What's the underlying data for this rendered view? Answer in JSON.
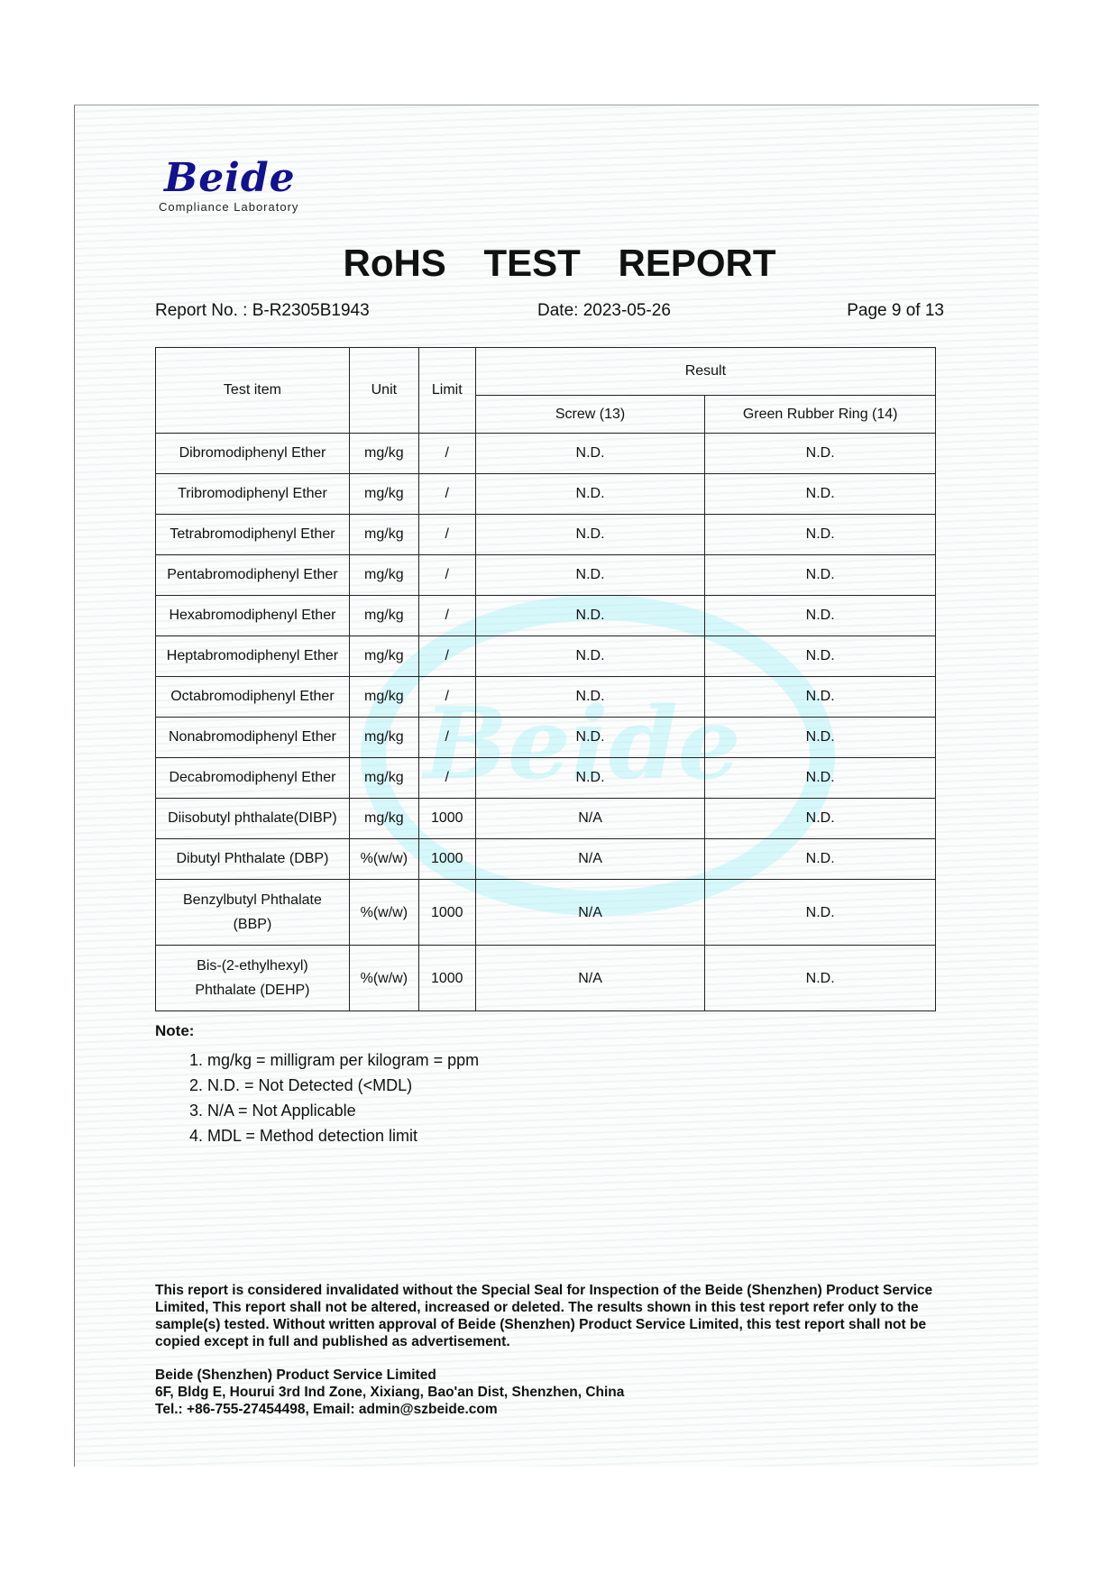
{
  "logo": {
    "word": "Beide",
    "subtitle": "Compliance Laboratory",
    "color": "#12128a"
  },
  "title": "RoHS TEST REPORT",
  "meta": {
    "report_no": "Report No. : B-R2305B1943",
    "date": "Date: 2023-05-26",
    "page": "Page 9 of 13"
  },
  "table": {
    "headers": {
      "test_item": "Test item",
      "unit": "Unit",
      "limit": "Limit",
      "result": "Result",
      "sample1": "Screw (13)",
      "sample2": "Green Rubber Ring (14)"
    },
    "rows": [
      {
        "item": "Dibromodiphenyl Ether",
        "unit": "mg/kg",
        "limit": "/",
        "r1": "N.D.",
        "r2": "N.D."
      },
      {
        "item": "Tribromodiphenyl Ether",
        "unit": "mg/kg",
        "limit": "/",
        "r1": "N.D.",
        "r2": "N.D."
      },
      {
        "item": "Tetrabromodiphenyl Ether",
        "unit": "mg/kg",
        "limit": "/",
        "r1": "N.D.",
        "r2": "N.D."
      },
      {
        "item": "Pentabromodiphenyl Ether",
        "unit": "mg/kg",
        "limit": "/",
        "r1": "N.D.",
        "r2": "N.D."
      },
      {
        "item": "Hexabromodiphenyl Ether",
        "unit": "mg/kg",
        "limit": "/",
        "r1": "N.D.",
        "r2": "N.D."
      },
      {
        "item": "Heptabromodiphenyl Ether",
        "unit": "mg/kg",
        "limit": "/",
        "r1": "N.D.",
        "r2": "N.D."
      },
      {
        "item": "Octabromodiphenyl Ether",
        "unit": "mg/kg",
        "limit": "/",
        "r1": "N.D.",
        "r2": "N.D."
      },
      {
        "item": "Nonabromodiphenyl Ether",
        "unit": "mg/kg",
        "limit": "/",
        "r1": "N.D.",
        "r2": "N.D."
      },
      {
        "item": "Decabromodiphenyl Ether",
        "unit": "mg/kg",
        "limit": "/",
        "r1": "N.D.",
        "r2": "N.D."
      },
      {
        "item": "Diisobutyl phthalate(DIBP)",
        "unit": "mg/kg",
        "limit": "1000",
        "r1": "N/A",
        "r2": "N.D."
      },
      {
        "item": "Dibutyl Phthalate (DBP)",
        "unit": "%(w/w)",
        "limit": "1000",
        "r1": "N/A",
        "r2": "N.D."
      },
      {
        "item": "Benzylbutyl Phthalate",
        "item2": "(BBP)",
        "unit": "%(w/w)",
        "limit": "1000",
        "r1": "N/A",
        "r2": "N.D."
      },
      {
        "item": "Bis-(2-ethylhexyl)",
        "item2": "Phthalate (DEHP)",
        "unit": "%(w/w)",
        "limit": "1000",
        "r1": "N/A",
        "r2": "N.D."
      }
    ]
  },
  "notes": {
    "label": "Note:",
    "items": [
      "1. mg/kg = milligram per kilogram = ppm",
      "2. N.D. = Not Detected (<MDL)",
      "3. N/A = Not Applicable",
      "4. MDL = Method detection limit"
    ]
  },
  "footer": {
    "disclaimer": "This report is considered invalidated without the Special Seal for Inspection of the Beide (Shenzhen) Product Service Limited, This report shall not be altered, increased or deleted. The results shown in this test report refer only to the sample(s) tested. Without written approval of Beide (Shenzhen) Product Service Limited, this test report shall not be copied except in full and published as advertisement.",
    "company": "Beide (Shenzhen) Product Service Limited",
    "address": "6F, Bldg E, Hourui 3rd Ind Zone, Xixiang, Bao'an Dist, Shenzhen, China",
    "contact": "Tel.: +86-755-27454498, Email: admin@szbeide.com"
  }
}
